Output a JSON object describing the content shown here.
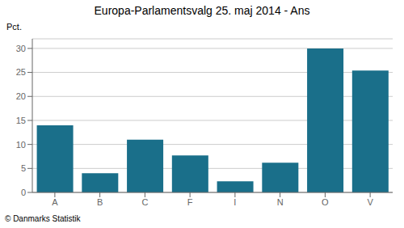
{
  "chart_data": {
    "type": "bar",
    "title": "Europa-Parlamentsvalg 25. maj 2014 - Ans",
    "ylabel": "Pct.",
    "footer": "© Danmarks Statistik",
    "categories": [
      "A",
      "B",
      "C",
      "F",
      "I",
      "N",
      "O",
      "V"
    ],
    "values": [
      14.0,
      4.0,
      11.0,
      7.7,
      2.3,
      6.2,
      30.0,
      25.4
    ],
    "color": "#1a6f8a",
    "ylim": [
      0,
      32
    ],
    "yticks": [
      0,
      5,
      10,
      15,
      20,
      25,
      30
    ],
    "grid": true
  }
}
